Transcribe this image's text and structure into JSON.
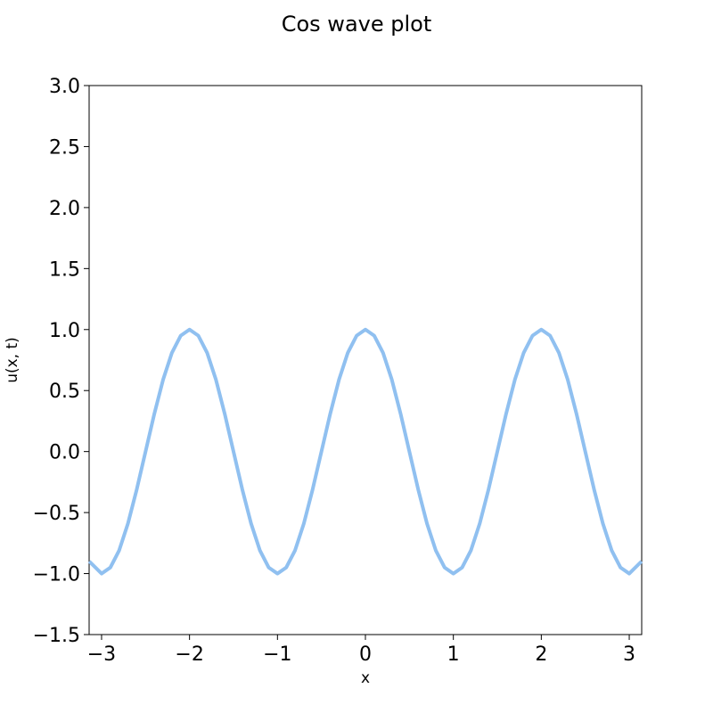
{
  "chart_data": {
    "type": "line",
    "title": "Cos wave plot",
    "xlabel": "x",
    "ylabel": "u(x, t)",
    "xlim": [
      -3.14159,
      3.14159
    ],
    "ylim": [
      -1.5,
      3.0
    ],
    "x_ticks": [
      -3,
      -2,
      -1,
      0,
      1,
      2,
      3
    ],
    "x_tick_labels": [
      "−3",
      "−2",
      "−1",
      "0",
      "1",
      "2",
      "3"
    ],
    "y_ticks": [
      -1.5,
      -1.0,
      -0.5,
      0.0,
      0.5,
      1.0,
      1.5,
      2.0,
      2.5,
      3.0
    ],
    "y_tick_labels": [
      "−1.5",
      "−1.0",
      "−0.5",
      "0.0",
      "0.5",
      "1.0",
      "1.5",
      "2.0",
      "2.5",
      "3.0"
    ],
    "grid": false,
    "legend": "none",
    "series": [
      {
        "color": "#90c0f0",
        "x": [
          -3.14,
          -3.0,
          -2.9,
          -2.8,
          -2.7,
          -2.6,
          -2.5,
          -2.4,
          -2.3,
          -2.2,
          -2.1,
          -2.0,
          -1.9,
          -1.8,
          -1.7,
          -1.6,
          -1.5,
          -1.4,
          -1.3,
          -1.2,
          -1.1,
          -1.0,
          -0.9,
          -0.8,
          -0.7,
          -0.6,
          -0.5,
          -0.4,
          -0.3,
          -0.2,
          -0.1,
          0.0,
          0.1,
          0.2,
          0.3,
          0.4,
          0.5,
          0.6,
          0.7,
          0.8,
          0.9,
          1.0,
          1.1,
          1.2,
          1.3,
          1.4,
          1.5,
          1.6,
          1.7,
          1.8,
          1.9,
          2.0,
          2.1,
          2.2,
          2.3,
          2.4,
          2.5,
          2.6,
          2.7,
          2.8,
          2.9,
          3.0,
          3.14
        ],
        "y": [
          -0.9,
          -1.0,
          -0.95,
          -0.81,
          -0.59,
          -0.31,
          0.0,
          0.31,
          0.59,
          0.81,
          0.95,
          1.0,
          0.95,
          0.81,
          0.59,
          0.31,
          0.0,
          -0.31,
          -0.59,
          -0.81,
          -0.95,
          -1.0,
          -0.95,
          -0.81,
          -0.59,
          -0.31,
          0.0,
          0.31,
          0.59,
          0.81,
          0.95,
          1.0,
          0.95,
          0.81,
          0.59,
          0.31,
          0.0,
          -0.31,
          -0.59,
          -0.81,
          -0.95,
          -1.0,
          -0.95,
          -0.81,
          -0.59,
          -0.31,
          0.0,
          0.31,
          0.59,
          0.81,
          0.95,
          1.0,
          0.95,
          0.81,
          0.59,
          0.31,
          0.0,
          -0.31,
          -0.59,
          -0.81,
          -0.95,
          -1.0,
          -0.9
        ]
      }
    ]
  }
}
